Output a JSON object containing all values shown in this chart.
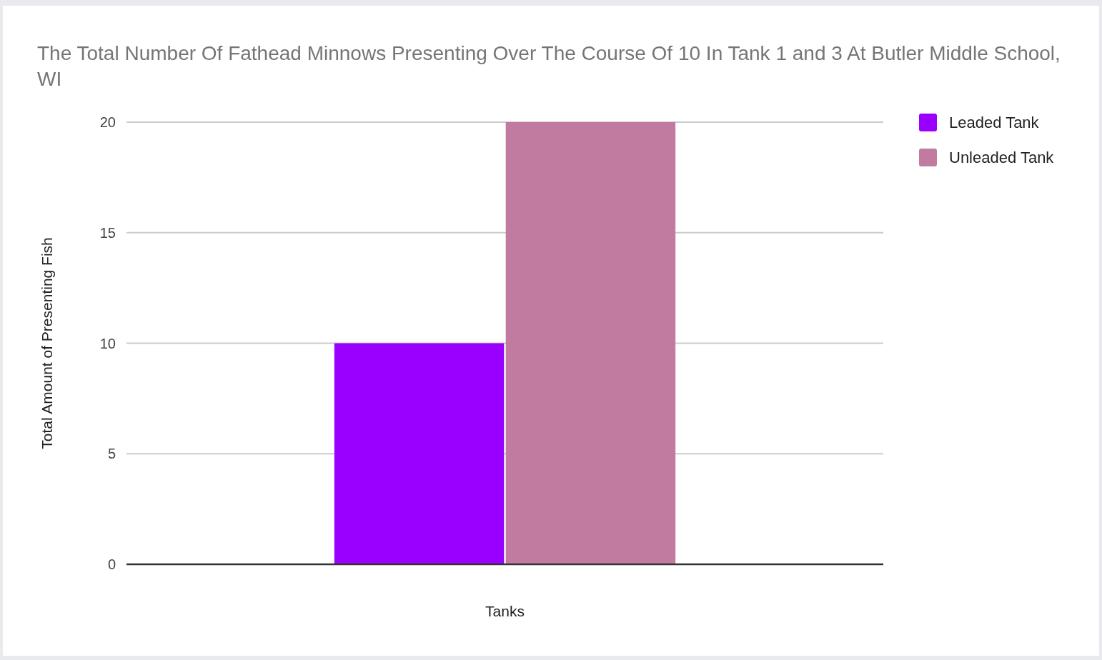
{
  "chart_data": {
    "type": "bar",
    "title": "The Total Number Of Fathead Minnows Presenting Over The Course Of 10 In Tank 1 and 3 At Butler Middle School, WI",
    "xlabel": "Tanks",
    "ylabel": "Total Amount of Presenting Fish",
    "categories": [
      null
    ],
    "series": [
      {
        "name": "Leaded Tank",
        "color": "#9900ff",
        "values": [
          10
        ]
      },
      {
        "name": "Unleaded Tank",
        "color": "#c27ba0",
        "values": [
          20
        ]
      }
    ],
    "ylim": [
      0,
      20
    ],
    "yticks": [
      0,
      5,
      10,
      15,
      20
    ],
    "grid": "y",
    "legend": "top right"
  }
}
